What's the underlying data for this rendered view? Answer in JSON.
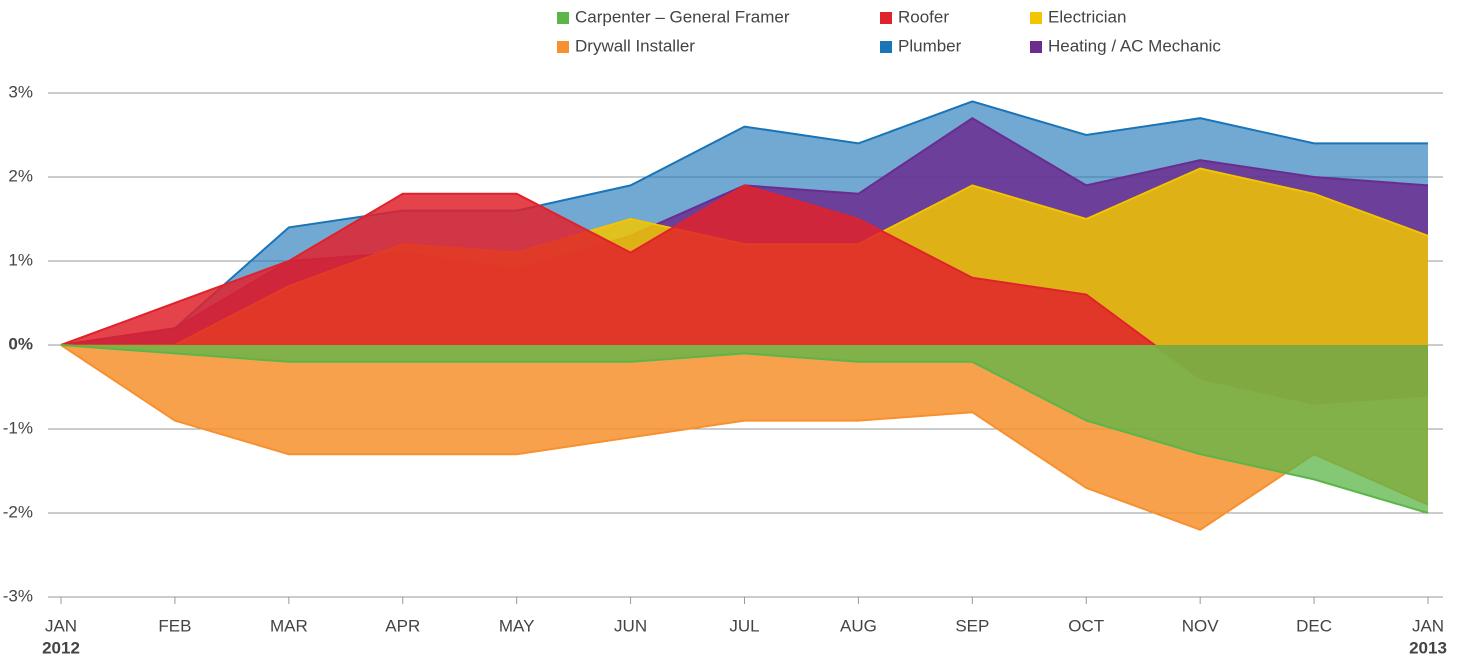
{
  "chart_data": {
    "type": "area",
    "categories": [
      "JAN",
      "FEB",
      "MAR",
      "APR",
      "MAY",
      "JUN",
      "JUL",
      "AUG",
      "SEP",
      "OCT",
      "NOV",
      "DEC",
      "JAN"
    ],
    "category_sublabels": [
      "2012",
      null,
      null,
      null,
      null,
      null,
      null,
      null,
      null,
      null,
      null,
      null,
      "2013"
    ],
    "ylim": [
      -3,
      3
    ],
    "yticks": [
      {
        "value": -3,
        "label": "-3%"
      },
      {
        "value": -2,
        "label": "-2%"
      },
      {
        "value": -1,
        "label": "-1%"
      },
      {
        "value": 0,
        "label": "0%"
      },
      {
        "value": 1,
        "label": "1%"
      },
      {
        "value": 2,
        "label": "2%"
      },
      {
        "value": 3,
        "label": "3%"
      }
    ],
    "grid": true,
    "legend": "top",
    "series": [
      {
        "name": "Carpenter – General Framer",
        "color": "#5bb548",
        "values": [
          0,
          -0.1,
          -0.2,
          -0.2,
          -0.2,
          -0.2,
          -0.1,
          -0.2,
          -0.2,
          -0.9,
          -1.3,
          -1.6,
          -2.0
        ]
      },
      {
        "name": "Roofer",
        "color": "#e0222b",
        "values": [
          0,
          0.5,
          1.0,
          1.8,
          1.8,
          1.1,
          1.9,
          1.5,
          0.8,
          0.6,
          -0.4,
          -0.7,
          -0.6
        ]
      },
      {
        "name": "Electrician",
        "color": "#f2c500",
        "values": [
          0,
          0,
          0.7,
          1.2,
          1.1,
          1.5,
          1.2,
          1.2,
          1.9,
          1.5,
          2.1,
          1.8,
          1.3
        ]
      },
      {
        "name": "Drywall Installer",
        "color": "#f7902e",
        "values": [
          0,
          -0.9,
          -1.3,
          -1.3,
          -1.3,
          -1.1,
          -0.9,
          -0.9,
          -0.8,
          -1.7,
          -2.2,
          -1.3,
          -1.9
        ]
      },
      {
        "name": "Plumber",
        "color": "#1a74b8",
        "values": [
          0,
          0.2,
          1.4,
          1.6,
          1.6,
          1.9,
          2.6,
          2.4,
          2.9,
          2.5,
          2.7,
          2.4,
          2.4
        ]
      },
      {
        "name": "Heating / AC Mechanic",
        "color": "#6a2d8f",
        "values": [
          0,
          0.2,
          1.0,
          1.1,
          0.9,
          1.3,
          1.9,
          1.8,
          2.7,
          1.9,
          2.2,
          2.0,
          1.9
        ]
      }
    ]
  }
}
